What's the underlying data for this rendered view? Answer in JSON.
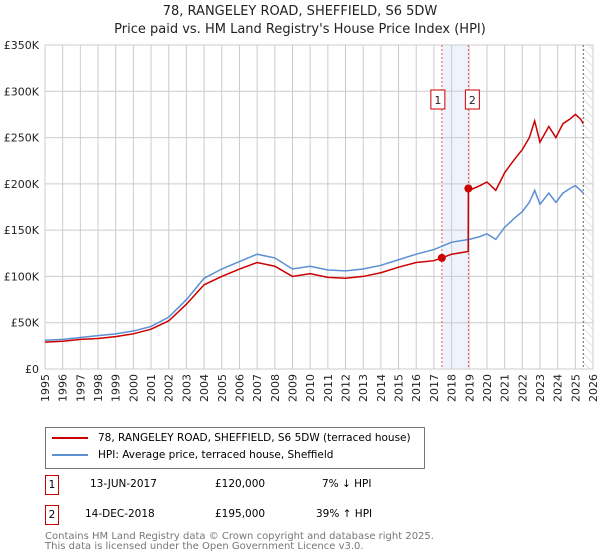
{
  "title": "78, RANGELEY ROAD, SHEFFIELD, S6 5DW",
  "subtitle": "Price paid vs. HM Land Registry's House Price Index (HPI)",
  "chart_data": {
    "type": "line",
    "xlim": [
      1995,
      2026
    ],
    "ylim": [
      0,
      350000
    ],
    "x_ticks": [
      "1995",
      "1996",
      "1997",
      "1998",
      "1999",
      "2000",
      "2001",
      "2002",
      "2003",
      "2004",
      "2005",
      "2006",
      "2007",
      "2008",
      "2009",
      "2010",
      "2011",
      "2012",
      "2013",
      "2014",
      "2015",
      "2016",
      "2017",
      "2018",
      "2019",
      "2020",
      "2021",
      "2022",
      "2023",
      "2024",
      "2025",
      "2026"
    ],
    "y_ticks": [
      {
        "v": 0,
        "label": "£0"
      },
      {
        "v": 50000,
        "label": "£50K"
      },
      {
        "v": 100000,
        "label": "£100K"
      },
      {
        "v": 150000,
        "label": "£150K"
      },
      {
        "v": 200000,
        "label": "£200K"
      },
      {
        "v": 250000,
        "label": "£250K"
      },
      {
        "v": 300000,
        "label": "£300K"
      },
      {
        "v": 350000,
        "label": "£350K"
      }
    ],
    "series": [
      {
        "name": "78, RANGELEY ROAD, SHEFFIELD, S6 5DW (terraced house)",
        "color": "#cc0000",
        "x": [
          1995,
          1996,
          1997,
          1998,
          1999,
          2000,
          2001,
          2002,
          2003,
          2004,
          2005,
          2006,
          2007,
          2008,
          2009,
          2010,
          2011,
          2012,
          2013,
          2014,
          2015,
          2016,
          2017,
          2017.45,
          2018,
          2018.94,
          2018.95,
          2019,
          2019.6,
          2020,
          2020.5,
          2021,
          2021.5,
          2022,
          2022.4,
          2022.7,
          2023,
          2023.5,
          2023.9,
          2024.3,
          2024.7,
          2025,
          2025.3,
          2025.45
        ],
        "y": [
          29000,
          30000,
          32000,
          33000,
          35000,
          38000,
          43000,
          52000,
          70000,
          91000,
          100000,
          108000,
          115000,
          111000,
          100000,
          103000,
          99000,
          98000,
          100000,
          104000,
          110000,
          115000,
          117000,
          120000,
          124000,
          127000,
          195000,
          193000,
          198000,
          202000,
          193000,
          212000,
          225000,
          237000,
          250000,
          268000,
          245000,
          262000,
          250000,
          265000,
          270000,
          275000,
          270000,
          265000
        ]
      },
      {
        "name": "HPI: Average price, terraced house, Sheffield",
        "color": "#5b8fd4",
        "x": [
          1995,
          1996,
          1997,
          1998,
          1999,
          2000,
          2001,
          2002,
          2003,
          2004,
          2005,
          2006,
          2007,
          2008,
          2009,
          2010,
          2011,
          2012,
          2013,
          2014,
          2015,
          2016,
          2017,
          2018,
          2019,
          2019.6,
          2020,
          2020.5,
          2021,
          2021.5,
          2022,
          2022.4,
          2022.7,
          2023,
          2023.5,
          2023.9,
          2024.3,
          2024.7,
          2025,
          2025.3,
          2025.45
        ],
        "y": [
          31000,
          32000,
          34000,
          36000,
          38000,
          41000,
          46000,
          56000,
          75000,
          98000,
          108000,
          116000,
          124000,
          120000,
          108000,
          111000,
          107000,
          106000,
          108000,
          112000,
          118000,
          124000,
          129000,
          137000,
          140000,
          143000,
          146000,
          140000,
          153000,
          162000,
          170000,
          180000,
          193000,
          178000,
          190000,
          180000,
          190000,
          195000,
          198000,
          193000,
          190000
        ]
      }
    ],
    "annotations": [
      {
        "label": "1",
        "x": 2017.45,
        "y": 120000
      },
      {
        "label": "2",
        "x": 2018.95,
        "y": 195000
      }
    ]
  },
  "legend": {
    "red": "78, RANGELEY ROAD, SHEFFIELD, S6 5DW (terraced house)",
    "blue": "HPI: Average price, terraced house, Sheffield"
  },
  "transactions": [
    {
      "num": "1",
      "date": "13-JUN-2017",
      "price": "£120,000",
      "hpi": "7% ↓ HPI"
    },
    {
      "num": "2",
      "date": "14-DEC-2018",
      "price": "£195,000",
      "hpi": "39% ↑ HPI"
    }
  ],
  "footer": [
    "Contains HM Land Registry data © Crown copyright and database right 2025.",
    "This data is licensed under the Open Government Licence v3.0."
  ]
}
